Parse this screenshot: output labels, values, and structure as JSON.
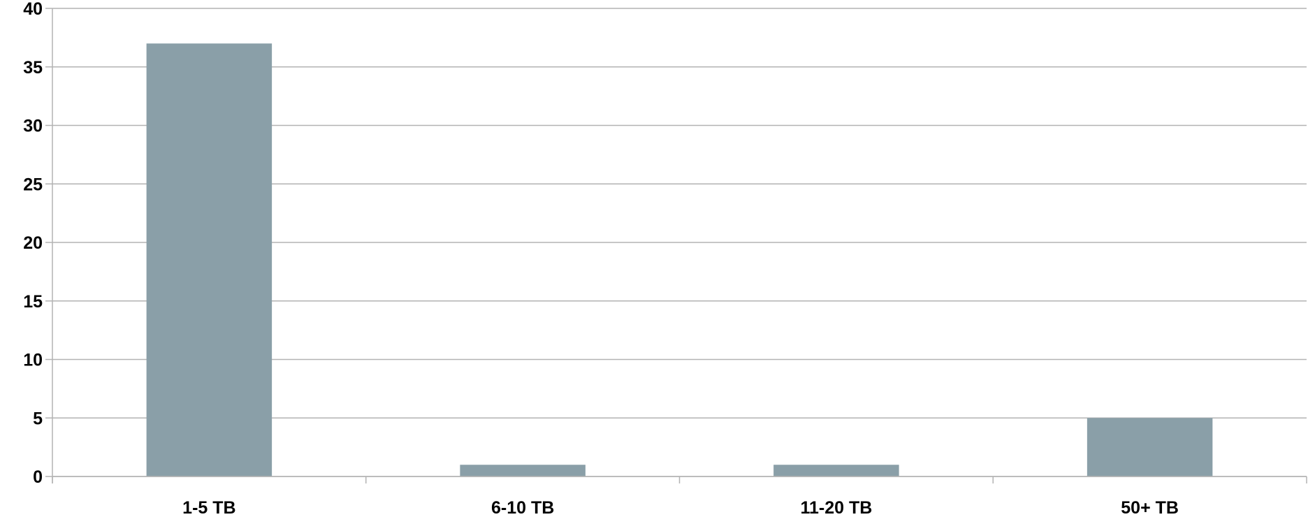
{
  "chart_data": {
    "type": "bar",
    "categories": [
      "1-5 TB",
      "6-10 TB",
      "11-20 TB",
      "50+ TB"
    ],
    "values": [
      37,
      1,
      1,
      5
    ],
    "ylim": [
      0,
      40
    ],
    "yticks": [
      0,
      5,
      10,
      15,
      20,
      25,
      30,
      35,
      40
    ],
    "grid": true,
    "legend": "none",
    "colors": {
      "bar": "#8a9fa8",
      "grid": "#b3b3b3",
      "axis": "#b3b3b3"
    }
  }
}
